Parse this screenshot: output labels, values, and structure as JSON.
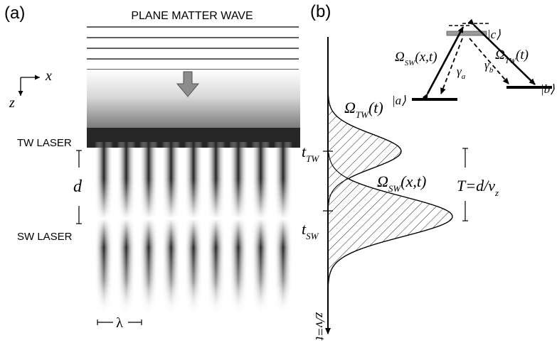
{
  "panel_a": {
    "panel_label": "(a)",
    "title": "PLANE MATTER WAVE",
    "axis_x": "x",
    "axis_z": "z",
    "tw_laser_label": "TW LASER",
    "sw_laser_label": "SW LASER",
    "spacing_label": "d",
    "wavelength_label": "λ"
  },
  "panel_b": {
    "panel_label": "(b)",
    "omega_tw_label": {
      "base": "Ω",
      "sub": "TW",
      "arg": "(t)"
    },
    "omega_sw_label": {
      "base": "Ω",
      "sub": "SW",
      "arg": "(x,t)"
    },
    "t_tw_label": {
      "base": "t",
      "sub": "TW"
    },
    "t_sw_label": {
      "base": "t",
      "sub": "SW"
    },
    "period_label": {
      "main": "T=d/v",
      "sub": "z"
    },
    "time_axis_label": "z/v=t",
    "level_scheme": {
      "state_a": "|a⟩",
      "state_b": "|b⟩",
      "state_c": "|c⟩",
      "omega_sw": {
        "base": "Ω",
        "sub": "SW",
        "arg": "(x,t)"
      },
      "omega_tw": {
        "base": "Ω",
        "sub": "TW",
        "arg": "(t)"
      },
      "gamma_a": {
        "base": "γ",
        "sub": "a"
      },
      "gamma_b": {
        "base": "γ",
        "sub": "b"
      }
    }
  }
}
